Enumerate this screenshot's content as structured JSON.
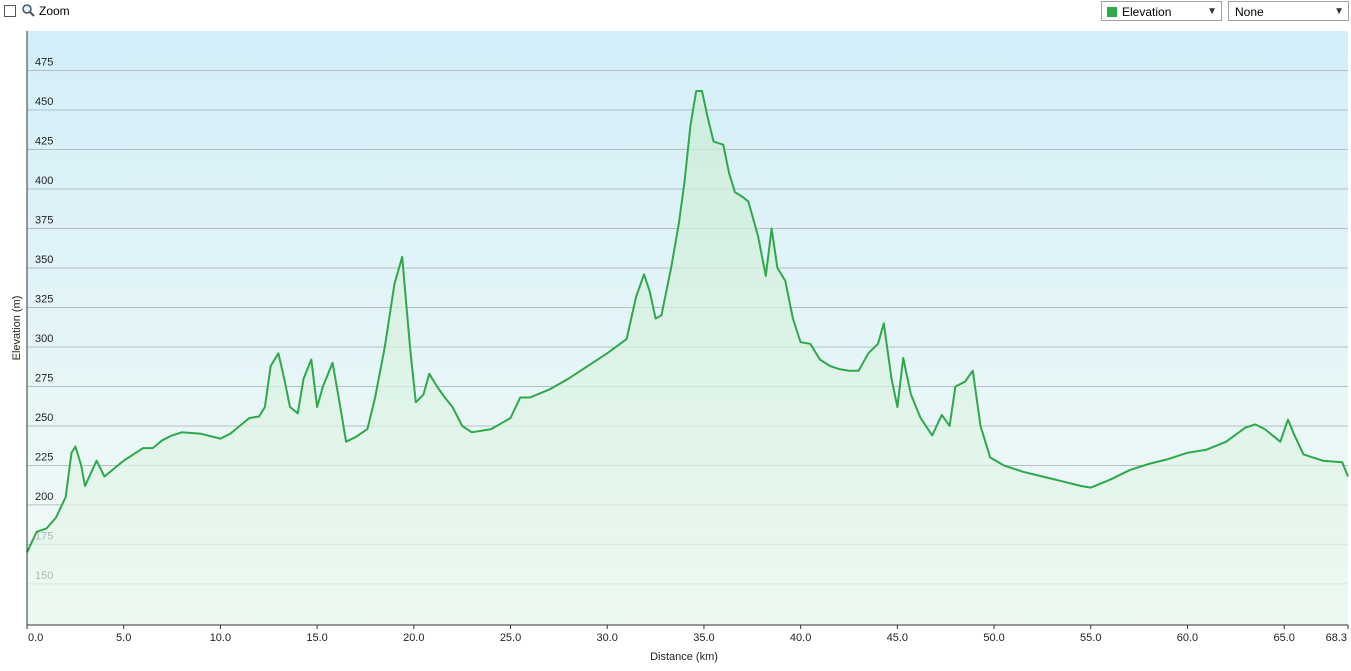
{
  "toolbar": {
    "zoom_label": "Zoom",
    "overlay_select": "None"
  },
  "chart_data": {
    "type": "line",
    "xlabel": "Distance (km)",
    "ylabel": "Elevation (m)",
    "x": [
      0,
      0.5,
      1,
      1.5,
      2,
      2.3,
      2.5,
      2.8,
      3,
      3.3,
      3.6,
      4,
      4.5,
      5,
      5.5,
      6,
      6.5,
      7,
      7.5,
      8,
      9,
      10,
      10.5,
      11,
      11.5,
      12,
      12.3,
      12.6,
      13,
      13.3,
      13.6,
      14,
      14.3,
      14.7,
      15,
      15.3,
      15.8,
      16.2,
      16.5,
      17,
      17.6,
      18,
      18.5,
      19,
      19.4,
      19.8,
      20.1,
      20.5,
      20.8,
      21.2,
      21.6,
      22,
      22.5,
      23,
      24,
      25,
      25.5,
      26,
      27,
      28,
      29,
      30,
      31,
      31.5,
      31.9,
      32.2,
      32.5,
      32.8,
      33.3,
      33.7,
      34,
      34.3,
      34.6,
      34.9,
      35.2,
      35.5,
      36,
      36.3,
      36.6,
      37,
      37.3,
      37.8,
      38.2,
      38.5,
      38.8,
      39.2,
      39.6,
      40,
      40.5,
      41,
      41.5,
      42,
      42.5,
      43,
      43.5,
      44,
      44.3,
      44.7,
      45,
      45.3,
      45.7,
      46.2,
      46.8,
      47.3,
      47.7,
      48,
      48.5,
      48.9,
      49.3,
      49.8,
      50.5,
      51.5,
      52.5,
      53.5,
      54.5,
      55,
      56,
      57,
      58,
      59,
      60,
      61,
      62,
      63,
      63.5,
      64,
      64.8,
      65.2,
      65.5,
      66,
      67,
      68,
      68.3
    ],
    "series": [
      {
        "name": "Elevation",
        "color": "#2ea84a",
        "values": [
          170,
          183,
          185,
          192,
          205,
          233,
          237,
          225,
          212,
          220,
          228,
          218,
          223,
          228,
          232,
          236,
          236,
          241,
          244,
          246,
          245,
          242,
          245,
          250,
          255,
          256,
          262,
          288,
          296,
          280,
          262,
          258,
          280,
          292,
          262,
          275,
          290,
          262,
          240,
          243,
          248,
          268,
          300,
          340,
          357,
          300,
          265,
          270,
          283,
          275,
          268,
          262,
          250,
          246,
          248,
          255,
          268,
          268,
          273,
          280,
          288,
          296,
          305,
          332,
          346,
          335,
          318,
          320,
          350,
          378,
          405,
          440,
          462,
          462,
          445,
          430,
          428,
          410,
          398,
          395,
          392,
          370,
          345,
          375,
          350,
          342,
          318,
          303,
          302,
          292,
          288,
          286,
          285,
          285,
          296,
          302,
          315,
          280,
          262,
          293,
          270,
          255,
          244,
          257,
          250,
          275,
          278,
          285,
          250,
          230,
          225,
          221,
          218,
          215,
          212,
          211,
          216,
          222,
          226,
          229,
          233,
          235,
          240,
          249,
          251,
          248,
          240,
          254,
          245,
          232,
          228,
          227,
          218
        ]
      }
    ],
    "xlim": [
      0,
      68.3
    ],
    "ylim": [
      124,
      500
    ],
    "xticks": [
      {
        "value": 0,
        "label": "0.0"
      },
      {
        "value": 5,
        "label": "5.0"
      },
      {
        "value": 10,
        "label": "10.0"
      },
      {
        "value": 15,
        "label": "15.0"
      },
      {
        "value": 20,
        "label": "20.0"
      },
      {
        "value": 25,
        "label": "25.0"
      },
      {
        "value": 30,
        "label": "30.0"
      },
      {
        "value": 35,
        "label": "35.0"
      },
      {
        "value": 40,
        "label": "40.0"
      },
      {
        "value": 45,
        "label": "45.0"
      },
      {
        "value": 50,
        "label": "50.0"
      },
      {
        "value": 55,
        "label": "55.0"
      },
      {
        "value": 60,
        "label": "60.0"
      },
      {
        "value": 65,
        "label": "65.0"
      },
      68.3
    ],
    "yticks": [
      150,
      175,
      200,
      225,
      250,
      275,
      300,
      325,
      350,
      375,
      400,
      425,
      450,
      475
    ],
    "grid": true
  }
}
